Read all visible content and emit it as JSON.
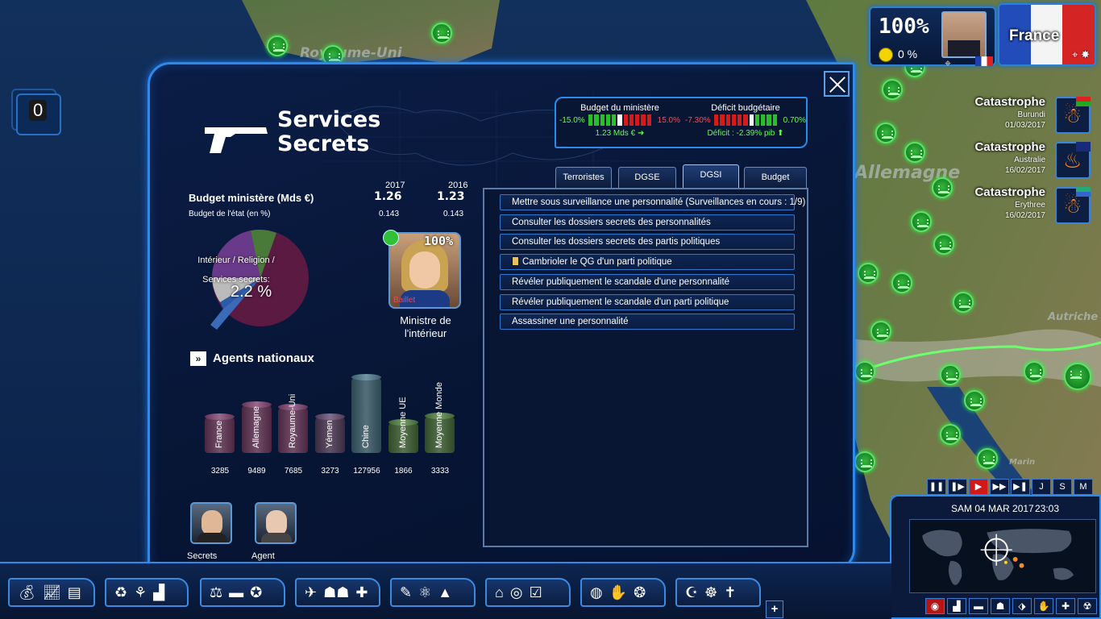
{
  "map": {
    "labels": [
      "Royaume-Uni",
      "Allemagne",
      "Autriche",
      "Marin"
    ]
  },
  "status": {
    "approval": "100%",
    "approval_small": "0 %",
    "country": "France"
  },
  "catastrophes": [
    {
      "title": "Catastrophe",
      "country": "Burundi",
      "date": "01/03/2017",
      "icon": "person-disaster-icon"
    },
    {
      "title": "Catastrophe",
      "country": "Australie",
      "date": "16/02/2017",
      "icon": "fire-icon"
    },
    {
      "title": "Catastrophe",
      "country": "Erythree",
      "date": "16/02/2017",
      "icon": "person-disaster-icon"
    }
  ],
  "counter": {
    "value": "0"
  },
  "panel": {
    "title_line1": "Services",
    "title_line2": "Secrets",
    "meters": {
      "ministry": {
        "label": "Budget du ministère",
        "min": "-15.0%",
        "max": "15.0%",
        "value": "1.23 Mds €"
      },
      "deficit": {
        "label": "Déficit budgétaire",
        "min": "-7.30%",
        "max": "0.70%",
        "value": "Déficit : -2.39% pib"
      }
    },
    "budget": {
      "year1": "2017",
      "year2": "2016",
      "row1_label": "Budget ministère (Mds €)",
      "row1_v1": "1.26",
      "row1_v2": "1.23",
      "row2_label": "Budget de l'état (en %)",
      "row2_v1": "0.143",
      "row2_v2": "0.143"
    },
    "pie": {
      "label": "Intérieur / Religion / Services secrets:",
      "percent": "2.2 %"
    },
    "minister": {
      "approval": "100%",
      "name": "Baillet",
      "role_line1": "Ministre de",
      "role_line2": "l'intérieur"
    },
    "agents_title": "Agents nationaux",
    "portraits": [
      {
        "label": "Secrets"
      },
      {
        "label": "Agent"
      }
    ],
    "tabs": [
      {
        "label": "Terroristes"
      },
      {
        "label": "DGSE"
      },
      {
        "label": "DGSI"
      },
      {
        "label": "Budget"
      }
    ],
    "actions": [
      {
        "label": "Mettre sous surveillance une personnalité (Surveillances en cours : 1/9)",
        "locked": false
      },
      {
        "label": "Consulter les dossiers secrets des personnalités",
        "locked": false
      },
      {
        "label": "Consulter les dossiers secrets des partis politiques",
        "locked": false
      },
      {
        "label": "Cambrioler le QG d'un parti politique",
        "locked": true
      },
      {
        "label": "Révéler publiquement le scandale d'une personnalité",
        "locked": false
      },
      {
        "label": "Révéler publiquement le scandale d'un parti politique",
        "locked": false
      },
      {
        "label": "Assassiner une personnalité",
        "locked": false
      }
    ]
  },
  "chart_data": {
    "type": "bar",
    "categories": [
      "France",
      "Allemagne",
      "Royaume-Uni",
      "Yémen",
      "Chine",
      "Moyenne UE",
      "Moyenne Monde"
    ],
    "values": [
      3285,
      9489,
      7685,
      3273,
      127956,
      1866,
      3333
    ],
    "title": "",
    "colors": [
      "#4a2640",
      "#4a2640",
      "#4a2640",
      "#3a2a40",
      "#2c4652",
      "#2f4a26",
      "#2f4a26"
    ]
  },
  "clock": {
    "date": "SAM 04 MAR 2017",
    "time": "23:03",
    "speed_buttons": [
      "❚❚",
      "❚▶",
      "▶",
      "▶▶",
      "▶❚",
      "J",
      "S",
      "M"
    ]
  }
}
